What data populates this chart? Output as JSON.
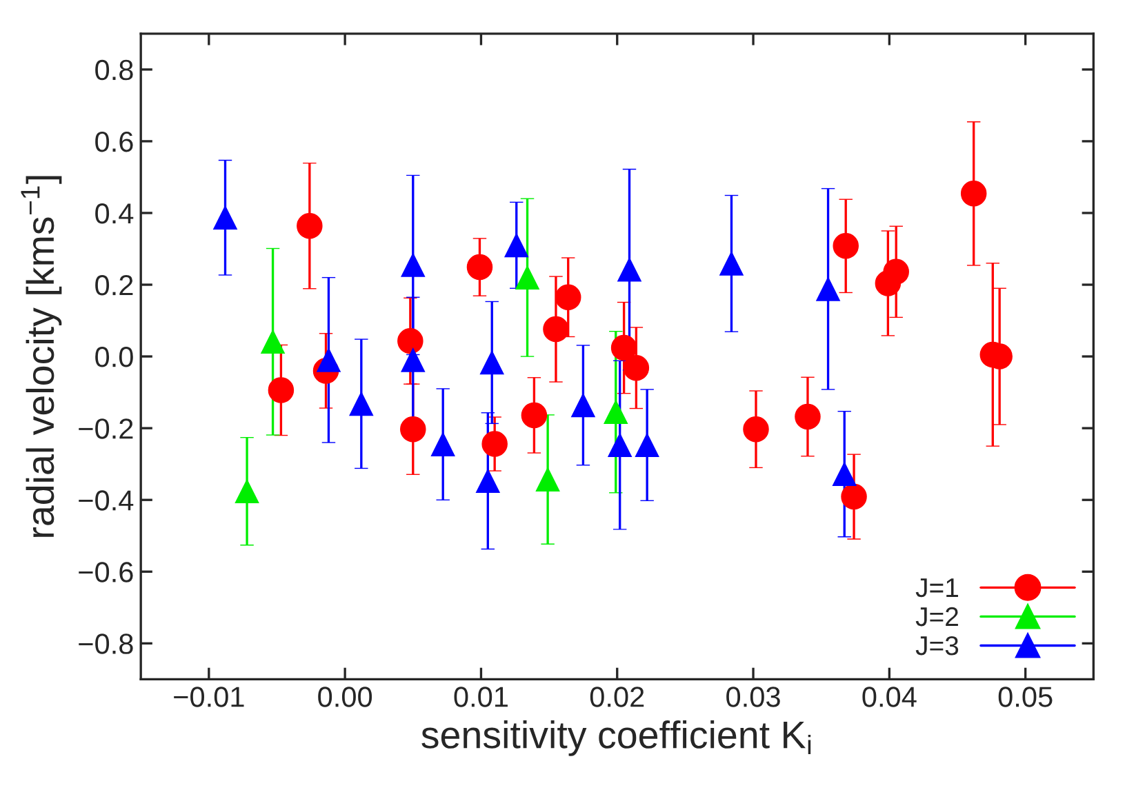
{
  "chart_data": {
    "type": "scatter",
    "xlabel": "sensitivity coefficient K$_{i}$",
    "ylabel": "radial velocity [kms$^{−1}$]",
    "xlim": [
      -0.015,
      0.055
    ],
    "ylim": [
      -0.9,
      0.9
    ],
    "xticks": [
      {
        "value": -0.01,
        "label": "−0.01"
      },
      {
        "value": 0.0,
        "label": "0.00"
      },
      {
        "value": 0.01,
        "label": "0.01"
      },
      {
        "value": 0.02,
        "label": "0.02"
      },
      {
        "value": 0.03,
        "label": "0.03"
      },
      {
        "value": 0.04,
        "label": "0.04"
      },
      {
        "value": 0.05,
        "label": "0.05"
      }
    ],
    "yticks": [
      {
        "value": -0.8,
        "label": "−0.8"
      },
      {
        "value": -0.6,
        "label": "−0.6"
      },
      {
        "value": -0.4,
        "label": "−0.4"
      },
      {
        "value": -0.2,
        "label": "−0.2"
      },
      {
        "value": 0.0,
        "label": "0.0"
      },
      {
        "value": 0.2,
        "label": "0.2"
      },
      {
        "value": 0.4,
        "label": "0.4"
      },
      {
        "value": 0.6,
        "label": "0.6"
      },
      {
        "value": 0.8,
        "label": "0.8"
      }
    ],
    "grid": false,
    "legend": "bottom right",
    "series": [
      {
        "name": "J=1",
        "color": "#ff0000",
        "marker": "circle",
        "x": [
          -0.0047,
          -0.0026,
          -0.0014,
          0.0048,
          0.005,
          0.0099,
          0.011,
          0.0139,
          0.0155,
          0.0164,
          0.0205,
          0.0214,
          0.0302,
          0.034,
          0.0368,
          0.0374,
          0.0399,
          0.0405,
          0.0462,
          0.0476,
          0.0481
        ],
        "values": [
          -0.094,
          0.364,
          -0.04,
          0.043,
          -0.203,
          0.249,
          -0.244,
          -0.164,
          0.076,
          0.165,
          0.024,
          -0.032,
          -0.203,
          -0.168,
          0.308,
          -0.391,
          0.204,
          0.236,
          0.454,
          0.005,
          0.0
        ],
        "errors": [
          0.126,
          0.175,
          0.104,
          0.12,
          0.126,
          0.08,
          0.075,
          0.105,
          0.147,
          0.11,
          0.127,
          0.113,
          0.107,
          0.11,
          0.13,
          0.118,
          0.146,
          0.127,
          0.2,
          0.255,
          0.19
        ]
      },
      {
        "name": "J=2",
        "color": "#00ee00",
        "marker": "triangle",
        "x": [
          -0.0072,
          -0.0053,
          0.0134,
          0.0149,
          0.0199
        ],
        "values": [
          -0.376,
          0.041,
          0.22,
          -0.343,
          -0.155
        ],
        "errors": [
          0.15,
          0.26,
          0.22,
          0.18,
          0.225
        ]
      },
      {
        "name": "J=3",
        "color": "#0000ff",
        "marker": "triangle",
        "x": [
          -0.0088,
          -0.0012,
          0.0012,
          0.005,
          0.005,
          0.0072,
          0.0105,
          0.0108,
          0.0126,
          0.0175,
          0.0202,
          0.0209,
          0.0222,
          0.0284,
          0.0355,
          0.0367
        ],
        "values": [
          0.387,
          -0.01,
          -0.132,
          0.255,
          -0.01,
          -0.245,
          -0.347,
          -0.017,
          0.31,
          -0.136,
          -0.247,
          0.242,
          -0.247,
          0.259,
          0.188,
          -0.328
        ],
        "errors": [
          0.16,
          0.23,
          0.18,
          0.25,
          0.175,
          0.155,
          0.19,
          0.17,
          0.12,
          0.167,
          0.235,
          0.28,
          0.155,
          0.19,
          0.28,
          0.175
        ]
      }
    ]
  }
}
